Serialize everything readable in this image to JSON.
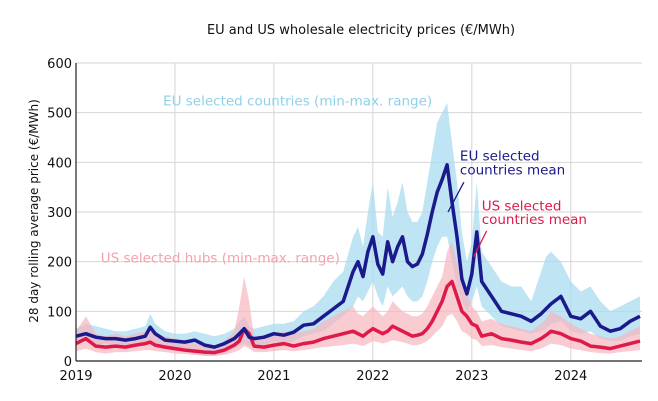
{
  "chart_data": {
    "type": "line",
    "title": "EU and US wholesale electricity prices (€/MWh)",
    "xlabel": "",
    "ylabel": "28 day rolling average price (€/MWh)",
    "xlim": [
      2019.0,
      2024.72
    ],
    "ylim": [
      0,
      600
    ],
    "yticks": [
      0,
      100,
      200,
      300,
      400,
      500,
      600
    ],
    "xticks": [
      2019,
      2020,
      2021,
      2022,
      2023,
      2024
    ],
    "xtick_labels": [
      "2019",
      "2020",
      "2021",
      "2022",
      "2023",
      "2024"
    ],
    "grid": true,
    "colors": {
      "eu_mean": "#1a1a8c",
      "eu_range": "#a9dbf0",
      "us_mean": "#e0194b",
      "us_range": "#f7b7bf",
      "eu_range_label": "#8fd0ec",
      "us_range_label": "#f2a3ad",
      "grid": "#d6d6d6"
    },
    "annotations": [
      {
        "text": "EU selected countries (min-max. range)",
        "series": "eu_range",
        "x": 2019.88,
        "y": 514
      },
      {
        "text": "US selected hubs (min-max. range)",
        "series": "us_range",
        "x": 2019.25,
        "y": 198
      },
      {
        "text": "EU selected",
        "series": "eu_mean",
        "x": 2022.88,
        "y": 404
      },
      {
        "text": "countries mean",
        "series": "eu_mean",
        "x": 2022.88,
        "y": 376
      },
      {
        "text": "US selected",
        "series": "us_mean",
        "x": 2023.1,
        "y": 303
      },
      {
        "text": "countries mean",
        "series": "us_mean",
        "x": 2023.1,
        "y": 276
      }
    ],
    "x": [
      2019.0,
      2019.1,
      2019.2,
      2019.3,
      2019.4,
      2019.5,
      2019.6,
      2019.7,
      2019.75,
      2019.8,
      2019.9,
      2020.0,
      2020.1,
      2020.2,
      2020.3,
      2020.4,
      2020.5,
      2020.6,
      2020.65,
      2020.7,
      2020.75,
      2020.8,
      2020.9,
      2021.0,
      2021.1,
      2021.2,
      2021.3,
      2021.4,
      2021.5,
      2021.6,
      2021.7,
      2021.8,
      2021.85,
      2021.9,
      2021.95,
      2022.0,
      2022.05,
      2022.1,
      2022.15,
      2022.2,
      2022.25,
      2022.3,
      2022.35,
      2022.4,
      2022.45,
      2022.5,
      2022.55,
      2022.6,
      2022.65,
      2022.7,
      2022.75,
      2022.8,
      2022.85,
      2022.9,
      2022.95,
      2023.0,
      2023.05,
      2023.1,
      2023.2,
      2023.3,
      2023.4,
      2023.5,
      2023.6,
      2023.7,
      2023.75,
      2023.8,
      2023.9,
      2024.0,
      2024.1,
      2024.2,
      2024.3,
      2024.4,
      2024.5,
      2024.6,
      2024.7
    ],
    "series": [
      {
        "name": "EU selected countries mean",
        "key": "eu_mean",
        "values": [
          50,
          55,
          48,
          45,
          45,
          42,
          45,
          50,
          68,
          55,
          42,
          40,
          38,
          42,
          32,
          28,
          35,
          45,
          55,
          65,
          48,
          45,
          48,
          55,
          52,
          58,
          72,
          75,
          90,
          105,
          120,
          180,
          200,
          170,
          220,
          250,
          195,
          175,
          240,
          200,
          230,
          250,
          200,
          190,
          195,
          215,
          255,
          300,
          340,
          365,
          395,
          320,
          250,
          165,
          135,
          175,
          260,
          160,
          130,
          100,
          95,
          90,
          80,
          95,
          105,
          115,
          130,
          90,
          85,
          100,
          70,
          60,
          65,
          80,
          90
        ]
      },
      {
        "name": "US selected countries mean",
        "key": "us_mean",
        "values": [
          35,
          45,
          30,
          28,
          30,
          28,
          32,
          35,
          38,
          32,
          28,
          25,
          22,
          20,
          18,
          17,
          22,
          32,
          40,
          65,
          55,
          30,
          28,
          32,
          35,
          30,
          35,
          38,
          45,
          50,
          55,
          60,
          55,
          50,
          58,
          65,
          60,
          55,
          60,
          70,
          65,
          60,
          55,
          50,
          52,
          55,
          65,
          80,
          100,
          120,
          150,
          160,
          130,
          100,
          90,
          75,
          70,
          50,
          55,
          45,
          42,
          38,
          35,
          45,
          52,
          60,
          55,
          45,
          40,
          30,
          28,
          25,
          30,
          35,
          40
        ]
      },
      {
        "name": "EU selected countries (min-max. range) lower",
        "key": "eu_low",
        "values": [
          35,
          40,
          32,
          35,
          30,
          30,
          35,
          35,
          40,
          35,
          25,
          20,
          20,
          15,
          10,
          10,
          15,
          25,
          30,
          35,
          30,
          30,
          30,
          40,
          35,
          40,
          50,
          55,
          60,
          75,
          90,
          110,
          130,
          120,
          140,
          160,
          130,
          110,
          150,
          130,
          140,
          150,
          130,
          120,
          120,
          130,
          160,
          200,
          230,
          250,
          250,
          200,
          150,
          120,
          100,
          120,
          150,
          110,
          90,
          70,
          65,
          60,
          55,
          60,
          65,
          75,
          80,
          60,
          55,
          60,
          45,
          40,
          40,
          50,
          55
        ]
      },
      {
        "name": "EU selected countries (min-max. range) upper",
        "key": "eu_high",
        "values": [
          65,
          75,
          70,
          65,
          60,
          60,
          65,
          70,
          95,
          75,
          60,
          55,
          55,
          60,
          55,
          50,
          55,
          65,
          80,
          90,
          70,
          65,
          70,
          75,
          75,
          80,
          100,
          110,
          130,
          160,
          180,
          250,
          270,
          230,
          300,
          360,
          260,
          250,
          350,
          290,
          320,
          360,
          300,
          280,
          280,
          300,
          360,
          420,
          480,
          500,
          520,
          440,
          360,
          260,
          200,
          240,
          360,
          220,
          190,
          160,
          150,
          150,
          120,
          180,
          210,
          220,
          200,
          160,
          140,
          150,
          120,
          100,
          110,
          120,
          130
        ]
      },
      {
        "name": "US selected hubs (min-max. range) lower",
        "key": "us_low",
        "values": [
          20,
          25,
          18,
          15,
          18,
          18,
          20,
          22,
          22,
          20,
          18,
          15,
          14,
          12,
          10,
          10,
          12,
          18,
          22,
          30,
          25,
          18,
          18,
          20,
          22,
          20,
          22,
          25,
          28,
          30,
          32,
          35,
          33,
          30,
          35,
          40,
          38,
          35,
          38,
          42,
          40,
          38,
          35,
          32,
          32,
          35,
          40,
          50,
          60,
          70,
          90,
          95,
          80,
          60,
          55,
          45,
          42,
          30,
          32,
          28,
          25,
          22,
          20,
          25,
          30,
          35,
          32,
          25,
          22,
          18,
          16,
          15,
          18,
          20,
          22
        ]
      },
      {
        "name": "US selected hubs (min-max. range) upper",
        "key": "us_high",
        "values": [
          60,
          90,
          55,
          50,
          55,
          50,
          55,
          60,
          65,
          55,
          50,
          45,
          40,
          35,
          32,
          30,
          40,
          60,
          110,
          170,
          120,
          50,
          45,
          55,
          60,
          55,
          60,
          65,
          80,
          90,
          100,
          110,
          95,
          90,
          100,
          110,
          100,
          90,
          100,
          120,
          110,
          100,
          95,
          90,
          90,
          95,
          110,
          130,
          150,
          170,
          220,
          240,
          200,
          160,
          140,
          110,
          100,
          80,
          85,
          75,
          70,
          65,
          60,
          75,
          85,
          100,
          90,
          75,
          65,
          55,
          50,
          45,
          50,
          60,
          70
        ]
      }
    ]
  }
}
